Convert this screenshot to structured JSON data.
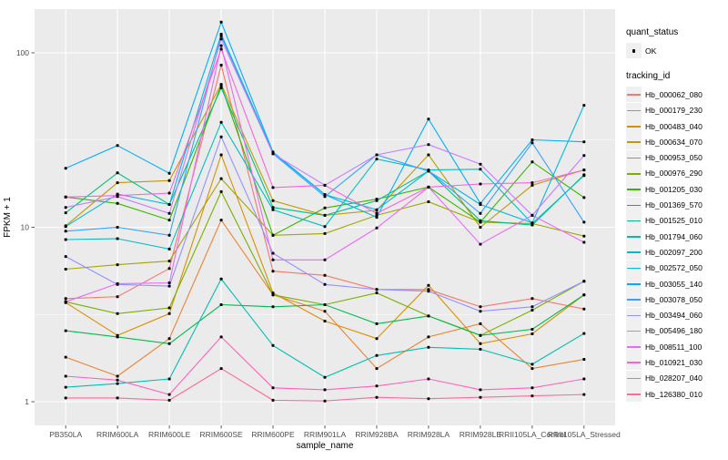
{
  "axes": {
    "x_label": "sample_name",
    "y_label": "FPKM + 1",
    "y_ticks": [
      "1",
      "10",
      "100"
    ]
  },
  "legend": {
    "quant_status_title": "quant_status",
    "quant_status_items": [
      {
        "label": "OK",
        "marker": "black-point"
      }
    ],
    "tracking_title": "tracking_id"
  },
  "chart_data": {
    "type": "line",
    "xlabel": "sample_name",
    "ylabel": "FPKM + 1",
    "yscale": "log10",
    "ylim": [
      0.75,
      180
    ],
    "y_major_breaks": [
      1,
      10,
      100
    ],
    "y_minor_breaks": [
      3.162,
      31.62
    ],
    "grid": "white on grey panel",
    "panel_color": "#EBEBEB",
    "legend_position": "right",
    "point_marker": "small black point (quant_status OK)",
    "categories": [
      "PB350LA",
      "RRIM600LA",
      "RRIM600LE",
      "RRIM600SE",
      "RRIM600PE",
      "RRIM901LA",
      "RRIM928BA",
      "RRIM928LA",
      "RRIM928LE",
      "RRII105LA_Control",
      "RRII105LA_Stressed"
    ],
    "series": [
      {
        "name": "Hb_000062_080",
        "color": "#F8766D",
        "values": [
          3.9,
          4.0,
          5.8,
          85,
          5.6,
          5.3,
          4.4,
          4.4,
          3.5,
          3.9,
          3.4
        ]
      },
      {
        "name": "Hb_000179_230",
        "color": "#EA8331",
        "values": [
          1.8,
          1.4,
          2.3,
          11,
          4.1,
          3.3,
          1.55,
          2.35,
          2.8,
          1.55,
          1.75
        ]
      },
      {
        "name": "Hb_000483_040",
        "color": "#D89000",
        "values": [
          3.7,
          2.4,
          3.2,
          26,
          4.2,
          2.9,
          2.3,
          4.65,
          2.15,
          2.45,
          4.1
        ]
      },
      {
        "name": "Hb_000634_070",
        "color": "#C09B00",
        "values": [
          10.2,
          18,
          18.5,
          66,
          14.2,
          11.7,
          12.5,
          26,
          10.0,
          17.4,
          21.3
        ]
      },
      {
        "name": "Hb_000953_050",
        "color": "#A3A500",
        "values": [
          5.75,
          6.1,
          6.4,
          19,
          9.0,
          9.2,
          11.7,
          14.0,
          10.7,
          10.5,
          8.9
        ]
      },
      {
        "name": "Hb_000976_290",
        "color": "#7CAE00",
        "values": [
          3.74,
          3.2,
          3.45,
          16,
          4.1,
          3.6,
          4.2,
          3.1,
          2.4,
          3.35,
          4.9
        ]
      },
      {
        "name": "Hb_001205_030",
        "color": "#39B600",
        "values": [
          14.9,
          13.7,
          11.0,
          65,
          9.0,
          12.9,
          14.5,
          17.0,
          10.7,
          23.7,
          14.8
        ]
      },
      {
        "name": "Hb_001369_570",
        "color": "#00BB4E",
        "values": [
          2.55,
          2.35,
          2.15,
          3.6,
          3.5,
          3.6,
          2.8,
          3.1,
          2.4,
          2.6,
          4.1
        ]
      },
      {
        "name": "Hb_001525_010",
        "color": "#00C087",
        "values": [
          12.1,
          20.5,
          13.5,
          63,
          13.0,
          11.7,
          14.2,
          21.0,
          10.9,
          10.3,
          20.0
        ]
      },
      {
        "name": "Hb_001794_060",
        "color": "#00C0B2",
        "values": [
          1.21,
          1.27,
          1.35,
          5.05,
          2.1,
          1.38,
          1.84,
          2.05,
          2.0,
          1.64,
          2.46
        ]
      },
      {
        "name": "Hb_002097_200",
        "color": "#00BFC4",
        "values": [
          8.5,
          8.6,
          7.5,
          40,
          12.6,
          10.1,
          24.6,
          21.3,
          21.5,
          10.5,
          19.8
        ]
      },
      {
        "name": "Hb_002572_050",
        "color": "#00BAE0",
        "values": [
          10.1,
          15.5,
          13.5,
          128,
          26.8,
          15.4,
          12.6,
          21.0,
          13.5,
          10.6,
          50
        ]
      },
      {
        "name": "Hb_003055_140",
        "color": "#00B0F6",
        "values": [
          21.8,
          29.4,
          20.4,
          150,
          27.0,
          15.4,
          11.4,
          41.7,
          13.7,
          31.7,
          30.9
        ]
      },
      {
        "name": "Hb_003078_050",
        "color": "#35A2FF",
        "values": [
          9.5,
          10.0,
          9.0,
          125,
          26.4,
          15.0,
          26.0,
          21.0,
          12.0,
          30.5,
          10.7
        ]
      },
      {
        "name": "Hb_003494_060",
        "color": "#9590FF",
        "values": [
          6.8,
          4.7,
          4.6,
          33,
          7.1,
          4.7,
          4.4,
          4.3,
          3.3,
          3.5,
          4.9
        ]
      },
      {
        "name": "Hb_005496_180",
        "color": "#C77CFF",
        "values": [
          13.0,
          15.0,
          12.0,
          120,
          26.4,
          17.4,
          26.0,
          29.8,
          23.0,
          11.7,
          25.8
        ]
      },
      {
        "name": "Hb_008511_100",
        "color": "#E76BF3",
        "values": [
          3.74,
          4.75,
          4.8,
          110,
          6.5,
          6.5,
          9.9,
          17.0,
          8.0,
          11.7,
          8.2
        ]
      },
      {
        "name": "Hb_010921_030",
        "color": "#FA62DB",
        "values": [
          14.9,
          15.2,
          15.7,
          105,
          16.9,
          17.4,
          12.0,
          17.0,
          17.7,
          18.0,
          21.3
        ]
      },
      {
        "name": "Hb_028207_040",
        "color": "#FF62BC",
        "values": [
          1.4,
          1.33,
          1.1,
          2.35,
          1.2,
          1.17,
          1.23,
          1.35,
          1.17,
          1.2,
          1.35
        ]
      },
      {
        "name": "Hb_126380_010",
        "color": "#FF6A98",
        "values": [
          1.05,
          1.05,
          1.02,
          1.55,
          1.02,
          1.01,
          1.06,
          1.04,
          1.06,
          1.08,
          1.1
        ]
      }
    ]
  }
}
